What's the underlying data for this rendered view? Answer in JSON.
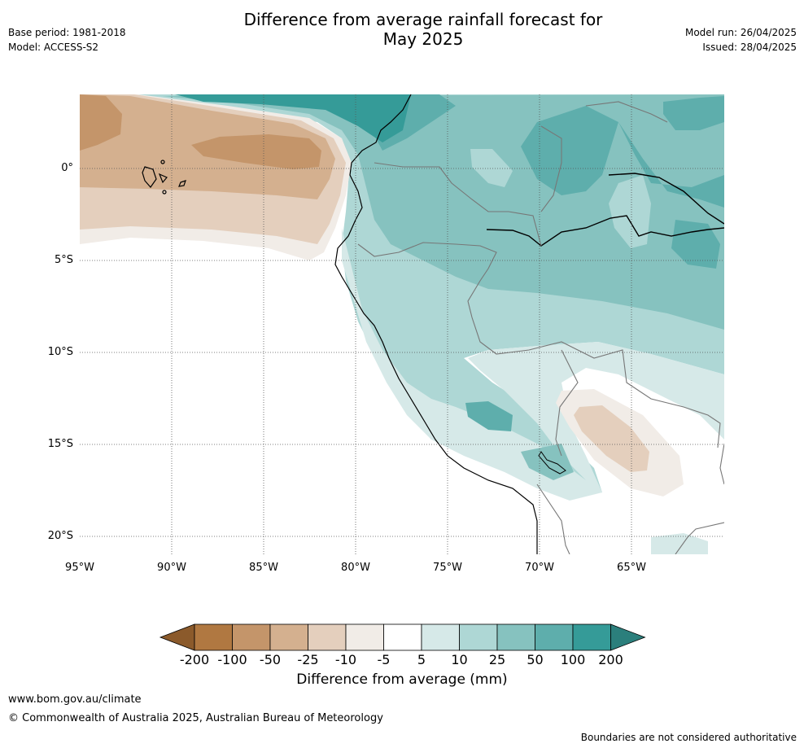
{
  "title_line1": "Difference from average rainfall forecast for",
  "title_line2": "May 2025",
  "meta_left": {
    "base_period": "Base period: 1981-2018",
    "model": "Model: ACCESS-S2"
  },
  "meta_right": {
    "model_run": "Model run: 26/04/2025",
    "issued": "Issued: 28/04/2025"
  },
  "lat_labels": [
    "0°",
    "5°S",
    "10°S",
    "15°S",
    "20°S"
  ],
  "lon_labels": [
    "95°W",
    "90°W",
    "85°W",
    "80°W",
    "75°W",
    "70°W",
    "65°W"
  ],
  "colorbar": {
    "label": "Difference from average (mm)",
    "ticks": [
      "-200",
      "-100",
      "-50",
      "-25",
      "-10",
      "-5",
      "5",
      "10",
      "25",
      "50",
      "100",
      "200"
    ],
    "colors": [
      "#8b5a2b",
      "#b07841",
      "#c4956a",
      "#d4b08f",
      "#e4cfbd",
      "#f1ece7",
      "#ffffff",
      "#d6e9e8",
      "#aed7d5",
      "#86c2bf",
      "#5eaeac",
      "#359b98",
      "#2b7f7c"
    ]
  },
  "footer": {
    "url": "www.bom.gov.au/climate",
    "copyright": "© Commonwealth of Australia 2025, Australian Bureau of Meteorology",
    "disclaimer": "Boundaries are not considered authoritative"
  }
}
